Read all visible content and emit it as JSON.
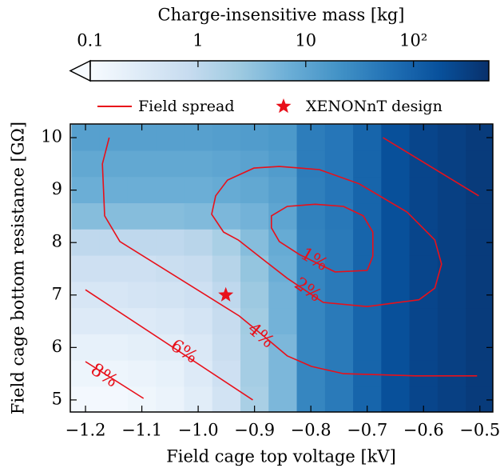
{
  "chart_data": {
    "type": "heatmap",
    "xlabel": "Field cage top voltage [kV]",
    "ylabel": "Field cage bottom resistance [GΩ]",
    "colorbar_label": "Charge-insensitive mass [kg]",
    "colormap": "Blues",
    "clim": [
      0.1,
      500
    ],
    "clog": true,
    "cticks": [
      0.1,
      1,
      10,
      {
        "value": 100,
        "label": "10²"
      }
    ],
    "xlim": [
      -1.227,
      -0.477
    ],
    "ylim": [
      4.77,
      10.26
    ],
    "xticks": [
      {
        "value": -1.2,
        "label": "−1.2"
      },
      {
        "value": -1.1,
        "label": "−1.1"
      },
      {
        "value": -1.0,
        "label": "−1.0"
      },
      {
        "value": -0.9,
        "label": "−0.9"
      },
      {
        "value": -0.8,
        "label": "−0.8"
      },
      {
        "value": -0.7,
        "label": "−0.7"
      },
      {
        "value": -0.6,
        "label": "−0.6"
      },
      {
        "value": -0.5,
        "label": "−0.5"
      }
    ],
    "yticks": [
      5,
      6,
      7,
      8,
      9,
      10
    ],
    "x": [
      -1.2,
      -1.15,
      -1.1,
      -1.05,
      -1.0,
      -0.95,
      -0.9,
      -0.85,
      -0.8,
      -0.75,
      -0.7,
      -0.65,
      -0.6,
      -0.55,
      -0.5
    ],
    "y": [
      10,
      9.5,
      9,
      8.5,
      8,
      7.5,
      7,
      6.5,
      6,
      5.5,
      5
    ],
    "z": [
      [
        12,
        12,
        12,
        12,
        12,
        13,
        14,
        16,
        40,
        50,
        90,
        180,
        250,
        300,
        350
      ],
      [
        9,
        9,
        9,
        9,
        9,
        10,
        11,
        14,
        40,
        50,
        90,
        180,
        250,
        300,
        350
      ],
      [
        7,
        7,
        7,
        7,
        7,
        8,
        9,
        12,
        38,
        50,
        90,
        180,
        250,
        300,
        350
      ],
      [
        4,
        4,
        4,
        4,
        4.5,
        5,
        6,
        10,
        35,
        48,
        90,
        180,
        250,
        300,
        350
      ],
      [
        1,
        1,
        1,
        1,
        1.2,
        1.8,
        4,
        8,
        33,
        45,
        90,
        180,
        250,
        300,
        350
      ],
      [
        0.6,
        0.6,
        0.6,
        0.7,
        0.8,
        1.3,
        3,
        7,
        30,
        45,
        90,
        180,
        250,
        300,
        350
      ],
      [
        0.4,
        0.4,
        0.45,
        0.5,
        0.6,
        1,
        2.5,
        6,
        30,
        45,
        90,
        180,
        250,
        300,
        350
      ],
      [
        0.3,
        0.3,
        0.3,
        0.35,
        0.45,
        0.8,
        2.2,
        6,
        30,
        45,
        90,
        180,
        250,
        300,
        350
      ],
      [
        0.2,
        0.2,
        0.22,
        0.25,
        0.35,
        0.7,
        2,
        5,
        30,
        45,
        90,
        180,
        250,
        300,
        350
      ],
      [
        0.15,
        0.15,
        0.17,
        0.2,
        0.3,
        0.6,
        2,
        5,
        30,
        45,
        90,
        180,
        250,
        300,
        350
      ],
      [
        0.12,
        0.12,
        0.14,
        0.17,
        0.25,
        0.5,
        1.8,
        5,
        30,
        45,
        90,
        180,
        250,
        300,
        350
      ]
    ],
    "contour_color": "#e8101a",
    "contours": [
      {
        "label": "1%",
        "x": [
          -0.82,
          -0.757,
          -0.7,
          -0.69,
          -0.69,
          -0.707,
          -0.742,
          -0.792,
          -0.842,
          -0.87,
          -0.87,
          -0.856,
          -0.82
        ],
        "y": [
          7.77,
          7.44,
          7.47,
          7.74,
          8.2,
          8.51,
          8.69,
          8.73,
          8.69,
          8.51,
          8.28,
          8.02,
          7.77
        ]
      },
      {
        "label": "2%",
        "x": [
          -0.929,
          -0.884,
          -0.842,
          -0.778,
          -0.7,
          -0.608,
          -0.58,
          -0.568,
          -0.58,
          -0.629,
          -0.714,
          -0.785,
          -0.856,
          -0.901,
          -0.948,
          -0.969,
          -0.976,
          -0.955,
          -0.929
        ],
        "y": [
          8.05,
          7.67,
          7.32,
          6.86,
          6.78,
          6.91,
          7.13,
          7.59,
          8.05,
          8.58,
          9.12,
          9.39,
          9.45,
          9.42,
          9.19,
          8.89,
          8.54,
          8.2,
          8.05
        ]
      },
      {
        "label": "4%",
        "x": [
          -1.158,
          -1.17,
          -1.166,
          -1.139,
          -0.927,
          -0.884,
          -0.842,
          -0.799,
          -0.742,
          -0.615,
          -0.505
        ],
        "y": [
          10.0,
          9.5,
          8.51,
          8.02,
          6.6,
          6.22,
          5.84,
          5.64,
          5.5,
          5.46,
          5.46
        ]
      },
      {
        "label": "6%",
        "x": [
          -1.2,
          -0.903
        ],
        "y": [
          7.1,
          5.0
        ]
      },
      {
        "label": "8%",
        "x": [
          -1.2,
          -1.097
        ],
        "y": [
          5.73,
          5.03
        ]
      },
      {
        "x": [
          -0.672,
          -0.502
        ],
        "y": [
          10.0,
          8.89
        ]
      }
    ],
    "marker": {
      "name": "XENONnT design",
      "x": -0.951,
      "y": 7.0,
      "color": "#e8101a"
    },
    "legend_line": "Field spread"
  }
}
